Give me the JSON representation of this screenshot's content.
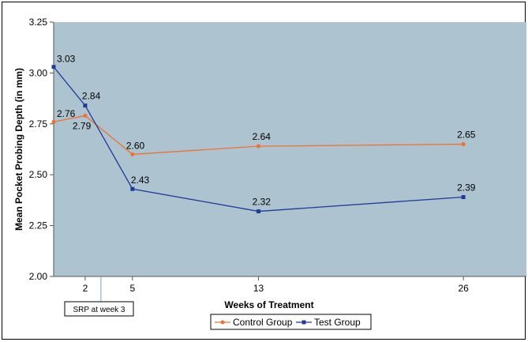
{
  "chart_data": {
    "type": "line",
    "title": "",
    "xlabel": "Weeks of Treatment",
    "ylabel": "Mean Pocket Probing Depth (in mm)",
    "xlim": [
      0,
      30
    ],
    "ylim": [
      2.0,
      3.25
    ],
    "x_ticks": [
      2,
      5,
      13,
      26
    ],
    "y_ticks": [
      "2.00",
      "2.25",
      "2.50",
      "2.75",
      "3.00",
      "3.25"
    ],
    "grid": false,
    "legend_position": "bottom-center",
    "colors": {
      "plot_background": "#aec3d0",
      "control": "#f07030",
      "test": "#1f3a9a"
    },
    "series": [
      {
        "name": "Control Group",
        "color": "#f07030",
        "x": [
          0,
          2,
          5,
          13,
          26
        ],
        "y": [
          2.76,
          2.79,
          2.6,
          2.64,
          2.65
        ],
        "labels": [
          "2.76",
          "2.79",
          "2.60",
          "2.64",
          "2.65"
        ]
      },
      {
        "name": "Test Group",
        "color": "#1f3a9a",
        "x": [
          0,
          2,
          5,
          13,
          26
        ],
        "y": [
          3.03,
          2.84,
          2.43,
          2.32,
          2.39
        ],
        "labels": [
          "3.03",
          "2.84",
          "2.43",
          "2.32",
          "2.39"
        ]
      }
    ],
    "annotations": [
      {
        "text": "SRP at week 3",
        "x": 3
      }
    ]
  }
}
